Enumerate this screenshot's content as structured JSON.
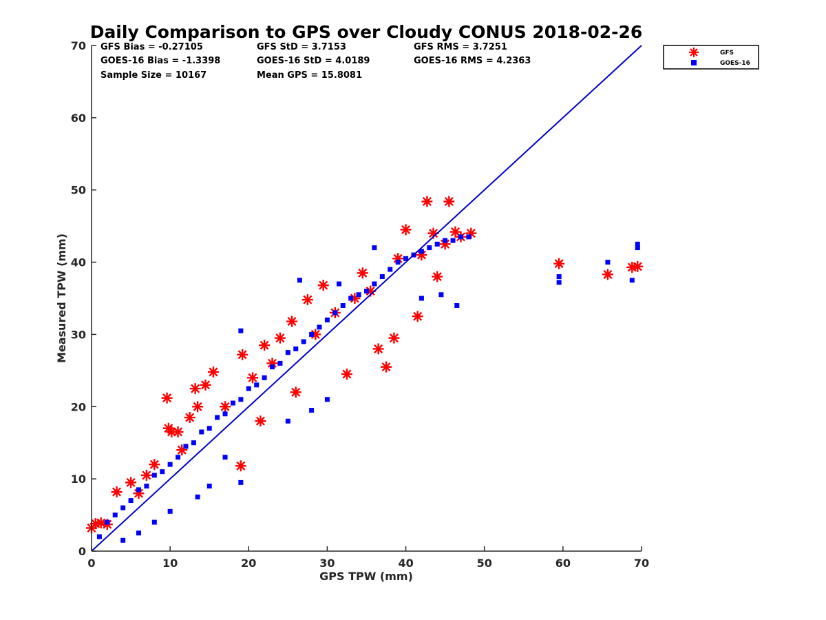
{
  "chart_data": {
    "type": "scatter",
    "title": "Daily Comparison to GPS over Cloudy CONUS 2018-02-26",
    "xlabel": "GPS TPW (mm)",
    "ylabel": "Measured TPW (mm)",
    "xlim": [
      0,
      70
    ],
    "ylim": [
      0,
      70
    ],
    "xticks": [
      "0",
      "10",
      "20",
      "30",
      "40",
      "50",
      "60",
      "70"
    ],
    "yticks": [
      "0",
      "10",
      "20",
      "30",
      "40",
      "50",
      "60",
      "70"
    ],
    "grid": false,
    "legend_position": "outside-top-right",
    "stats": [
      [
        "GFS Bias = -0.27105",
        "GFS StD = 3.7153",
        "GFS RMS = 3.7251"
      ],
      [
        "GOES-16 Bias = -1.3398",
        "GOES-16 StD = 4.0189",
        "GOES-16 RMS = 4.2363"
      ],
      [
        "Sample Size = 10167",
        "Mean GPS = 15.8081"
      ]
    ],
    "reference_line": {
      "from": [
        0,
        0
      ],
      "to": [
        70,
        70
      ],
      "color": "#0000cc"
    },
    "series": [
      {
        "name": "GFS",
        "marker": "asterisk",
        "color": "#ff0000",
        "points": [
          [
            0,
            3.2
          ],
          [
            0.5,
            3.8
          ],
          [
            1.2,
            3.9
          ],
          [
            2,
            3.7
          ],
          [
            3.2,
            8.2
          ],
          [
            5,
            9.5
          ],
          [
            7,
            10.5
          ],
          [
            9.6,
            21.2
          ],
          [
            9.8,
            17.0
          ],
          [
            10.2,
            16.5
          ],
          [
            11,
            16.5
          ],
          [
            13.2,
            22.5
          ],
          [
            13.5,
            20.0
          ],
          [
            14.5,
            23.0
          ],
          [
            15.5,
            24.8
          ],
          [
            19.2,
            27.2
          ],
          [
            19.0,
            11.8
          ],
          [
            21.5,
            18.0
          ],
          [
            22.0,
            28.5
          ],
          [
            24.0,
            29.5
          ],
          [
            25.5,
            31.8
          ],
          [
            27.5,
            34.8
          ],
          [
            29.5,
            36.8
          ],
          [
            32.5,
            24.5
          ],
          [
            34.5,
            38.5
          ],
          [
            37.5,
            25.5
          ],
          [
            38.5,
            29.5
          ],
          [
            40,
            44.5
          ],
          [
            41.5,
            32.5
          ],
          [
            42.7,
            48.4
          ],
          [
            43.5,
            44.0
          ],
          [
            45.5,
            48.4
          ],
          [
            46.3,
            44.2
          ],
          [
            48.3,
            44.0
          ],
          [
            59.5,
            39.8
          ],
          [
            65.7,
            38.3
          ],
          [
            68.8,
            39.3
          ],
          [
            69.5,
            39.4
          ],
          [
            6,
            8
          ],
          [
            8,
            12
          ],
          [
            11.5,
            14
          ],
          [
            12.5,
            18.5
          ],
          [
            17,
            20
          ],
          [
            20.5,
            24
          ],
          [
            23,
            26
          ],
          [
            26,
            22
          ],
          [
            28.5,
            30
          ],
          [
            31,
            33
          ],
          [
            33.5,
            35
          ],
          [
            35.5,
            36
          ],
          [
            36.5,
            28
          ],
          [
            39,
            40.5
          ],
          [
            42,
            41
          ],
          [
            44,
            38
          ],
          [
            45,
            42.5
          ],
          [
            47,
            43.5
          ]
        ]
      },
      {
        "name": "GOES-16",
        "marker": "square",
        "color": "#0000ff",
        "points": [
          [
            1,
            2
          ],
          [
            2,
            4
          ],
          [
            3,
            5
          ],
          [
            4,
            6
          ],
          [
            5,
            7
          ],
          [
            6,
            8.5
          ],
          [
            7,
            9
          ],
          [
            8,
            10.5
          ],
          [
            9,
            11
          ],
          [
            10,
            12
          ],
          [
            11,
            13
          ],
          [
            12,
            14.5
          ],
          [
            13,
            15
          ],
          [
            14,
            16.5
          ],
          [
            15,
            17
          ],
          [
            16,
            18.5
          ],
          [
            17,
            19
          ],
          [
            18,
            20.5
          ],
          [
            19,
            21
          ],
          [
            20,
            22.5
          ],
          [
            21,
            23
          ],
          [
            22,
            24
          ],
          [
            23,
            25.5
          ],
          [
            24,
            26
          ],
          [
            25,
            27.5
          ],
          [
            26,
            28
          ],
          [
            27,
            29
          ],
          [
            28,
            30
          ],
          [
            29,
            31
          ],
          [
            30,
            32
          ],
          [
            31,
            33
          ],
          [
            32,
            34
          ],
          [
            33,
            35
          ],
          [
            34,
            35.5
          ],
          [
            35,
            36
          ],
          [
            36,
            37
          ],
          [
            37,
            38
          ],
          [
            38,
            39
          ],
          [
            39,
            40
          ],
          [
            40,
            40.5
          ],
          [
            41,
            41
          ],
          [
            42,
            41.5
          ],
          [
            43,
            42
          ],
          [
            44,
            42.5
          ],
          [
            45,
            43
          ],
          [
            46,
            43
          ],
          [
            47,
            43.5
          ],
          [
            48,
            43.5
          ],
          [
            19,
            30.5
          ],
          [
            26.5,
            37.5
          ],
          [
            31.5,
            37.0
          ],
          [
            36,
            42.0
          ],
          [
            42,
            35
          ],
          [
            44.5,
            35.5
          ],
          [
            46.5,
            34
          ],
          [
            59.5,
            38.0
          ],
          [
            59.5,
            37.2
          ],
          [
            65.7,
            40.0
          ],
          [
            68.8,
            37.5
          ],
          [
            69.5,
            42.5
          ],
          [
            69.5,
            42.0
          ],
          [
            28,
            19.5
          ],
          [
            30,
            21
          ],
          [
            25,
            18
          ],
          [
            17,
            13
          ],
          [
            15,
            9
          ],
          [
            19,
            9.5
          ],
          [
            13.5,
            7.5
          ],
          [
            10,
            5.5
          ],
          [
            8,
            4
          ],
          [
            6,
            2.5
          ],
          [
            4,
            1.5
          ]
        ]
      }
    ]
  }
}
